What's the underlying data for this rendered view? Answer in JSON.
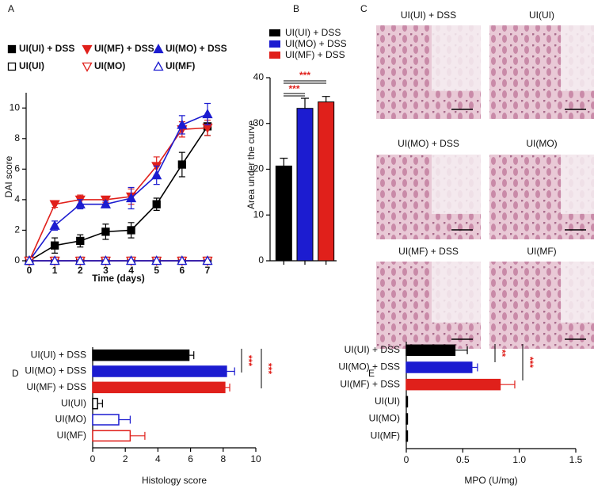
{
  "chart_data": [
    {
      "panel": "A",
      "type": "line",
      "x_label": "Time (days)",
      "y_label": "DAI score",
      "x": [
        0,
        1,
        2,
        3,
        4,
        5,
        6,
        7
      ],
      "xlim": [
        0,
        7
      ],
      "xticks": [
        0,
        1,
        2,
        3,
        4,
        5,
        6,
        7
      ],
      "ylim": [
        0,
        11
      ],
      "yticks": [
        0,
        2,
        4,
        6,
        8,
        10
      ],
      "series": [
        {
          "name": "UI(UI) + DSS",
          "color": "#000000",
          "marker": "square",
          "filled": true,
          "values": [
            0,
            1.0,
            1.3,
            1.9,
            2.0,
            3.7,
            6.3,
            8.8
          ],
          "errors": [
            0,
            0.5,
            0.4,
            0.5,
            0.5,
            0.4,
            0.8,
            0.6
          ]
        },
        {
          "name": "UI(MF) + DSS",
          "color": "#e0201b",
          "marker": "triangle-down",
          "filled": true,
          "values": [
            0,
            3.7,
            4.0,
            4.0,
            4.2,
            6.2,
            8.6,
            8.7
          ],
          "errors": [
            0,
            0.2,
            0.3,
            0.2,
            0.5,
            0.6,
            0.5,
            0.5
          ]
        },
        {
          "name": "UI(MO) + DSS",
          "color": "#1c1cd0",
          "marker": "triangle-up",
          "filled": true,
          "values": [
            0,
            2.3,
            3.7,
            3.7,
            4.1,
            5.6,
            8.9,
            9.6
          ],
          "errors": [
            0,
            0.3,
            0.3,
            0.2,
            0.7,
            0.6,
            0.6,
            0.7
          ]
        },
        {
          "name": "UI(UI)",
          "color": "#000000",
          "marker": "square",
          "filled": false,
          "values": [
            0,
            0,
            0,
            0,
            0,
            0,
            0,
            0
          ]
        },
        {
          "name": "UI(MO)",
          "color": "#e0201b",
          "marker": "triangle-down",
          "filled": false,
          "values": [
            0,
            0,
            0,
            0,
            0,
            0,
            0,
            0
          ]
        },
        {
          "name": "UI(MF)",
          "color": "#1c1cd0",
          "marker": "triangle-up",
          "filled": false,
          "values": [
            0,
            0,
            0,
            0,
            0,
            0,
            0,
            0
          ]
        }
      ]
    },
    {
      "panel": "B",
      "type": "bar",
      "y_label": "Area under the curve",
      "categories": [
        "UI(UI) + DSS",
        "UI(MO) + DSS",
        "UI(MF) + DSS"
      ],
      "colors": [
        "#000000",
        "#1c1cd0",
        "#e0201b"
      ],
      "values": [
        20.7,
        33.3,
        34.7
      ],
      "errors": [
        1.7,
        2.2,
        1.2
      ],
      "ylim": [
        0,
        40
      ],
      "yticks": [
        0,
        10,
        20,
        30,
        40
      ],
      "annotations": [
        "***",
        "***"
      ]
    },
    {
      "panel": "C",
      "type": "image-grid",
      "captions": [
        "UI(UI) + DSS",
        "UI(UI)",
        "UI(MO) + DSS",
        "UI(MO)",
        "UI(MF) + DSS",
        "UI(MF)"
      ]
    },
    {
      "panel": "D",
      "type": "hbar",
      "x_label": "Histology score",
      "categories": [
        "UI(UI) + DSS",
        "UI(MO) + DSS",
        "UI(MF) + DSS",
        "UI(UI)",
        "UI(MO)",
        "UI(MF)"
      ],
      "values": [
        5.9,
        8.2,
        8.1,
        0.3,
        1.6,
        2.3
      ],
      "errors": [
        0.3,
        0.5,
        0.3,
        0.3,
        0.7,
        0.9
      ],
      "colors": [
        "#000000",
        "#1c1cd0",
        "#e0201b",
        "#000000",
        "#1c1cd0",
        "#e0201b"
      ],
      "filled": [
        true,
        true,
        true,
        false,
        false,
        false
      ],
      "xlim": [
        0,
        10
      ],
      "xticks": [
        0,
        2,
        4,
        6,
        8,
        10
      ],
      "annotations": [
        "***",
        "***"
      ]
    },
    {
      "panel": "E",
      "type": "hbar",
      "x_label": "MPO (U/mg)",
      "categories": [
        "UI(UI) + DSS",
        "UI(MO) + DSS",
        "UI(MF) + DSS",
        "UI(UI)",
        "UI(MO)",
        "UI(MF)"
      ],
      "values": [
        0.43,
        0.58,
        0.83,
        0.01,
        0.01,
        0.01
      ],
      "errors": [
        0.11,
        0.05,
        0.13,
        0,
        0,
        0
      ],
      "colors": [
        "#000000",
        "#1c1cd0",
        "#e0201b",
        "#000000",
        "#000000",
        "#000000"
      ],
      "filled": [
        true,
        true,
        true,
        true,
        true,
        true
      ],
      "xlim": [
        0,
        1.5
      ],
      "xticks": [
        0,
        0.5,
        {
          "value": 1,
          "label": "1.0"
        },
        1.5
      ],
      "annotations": [
        "**",
        "***"
      ]
    }
  ]
}
